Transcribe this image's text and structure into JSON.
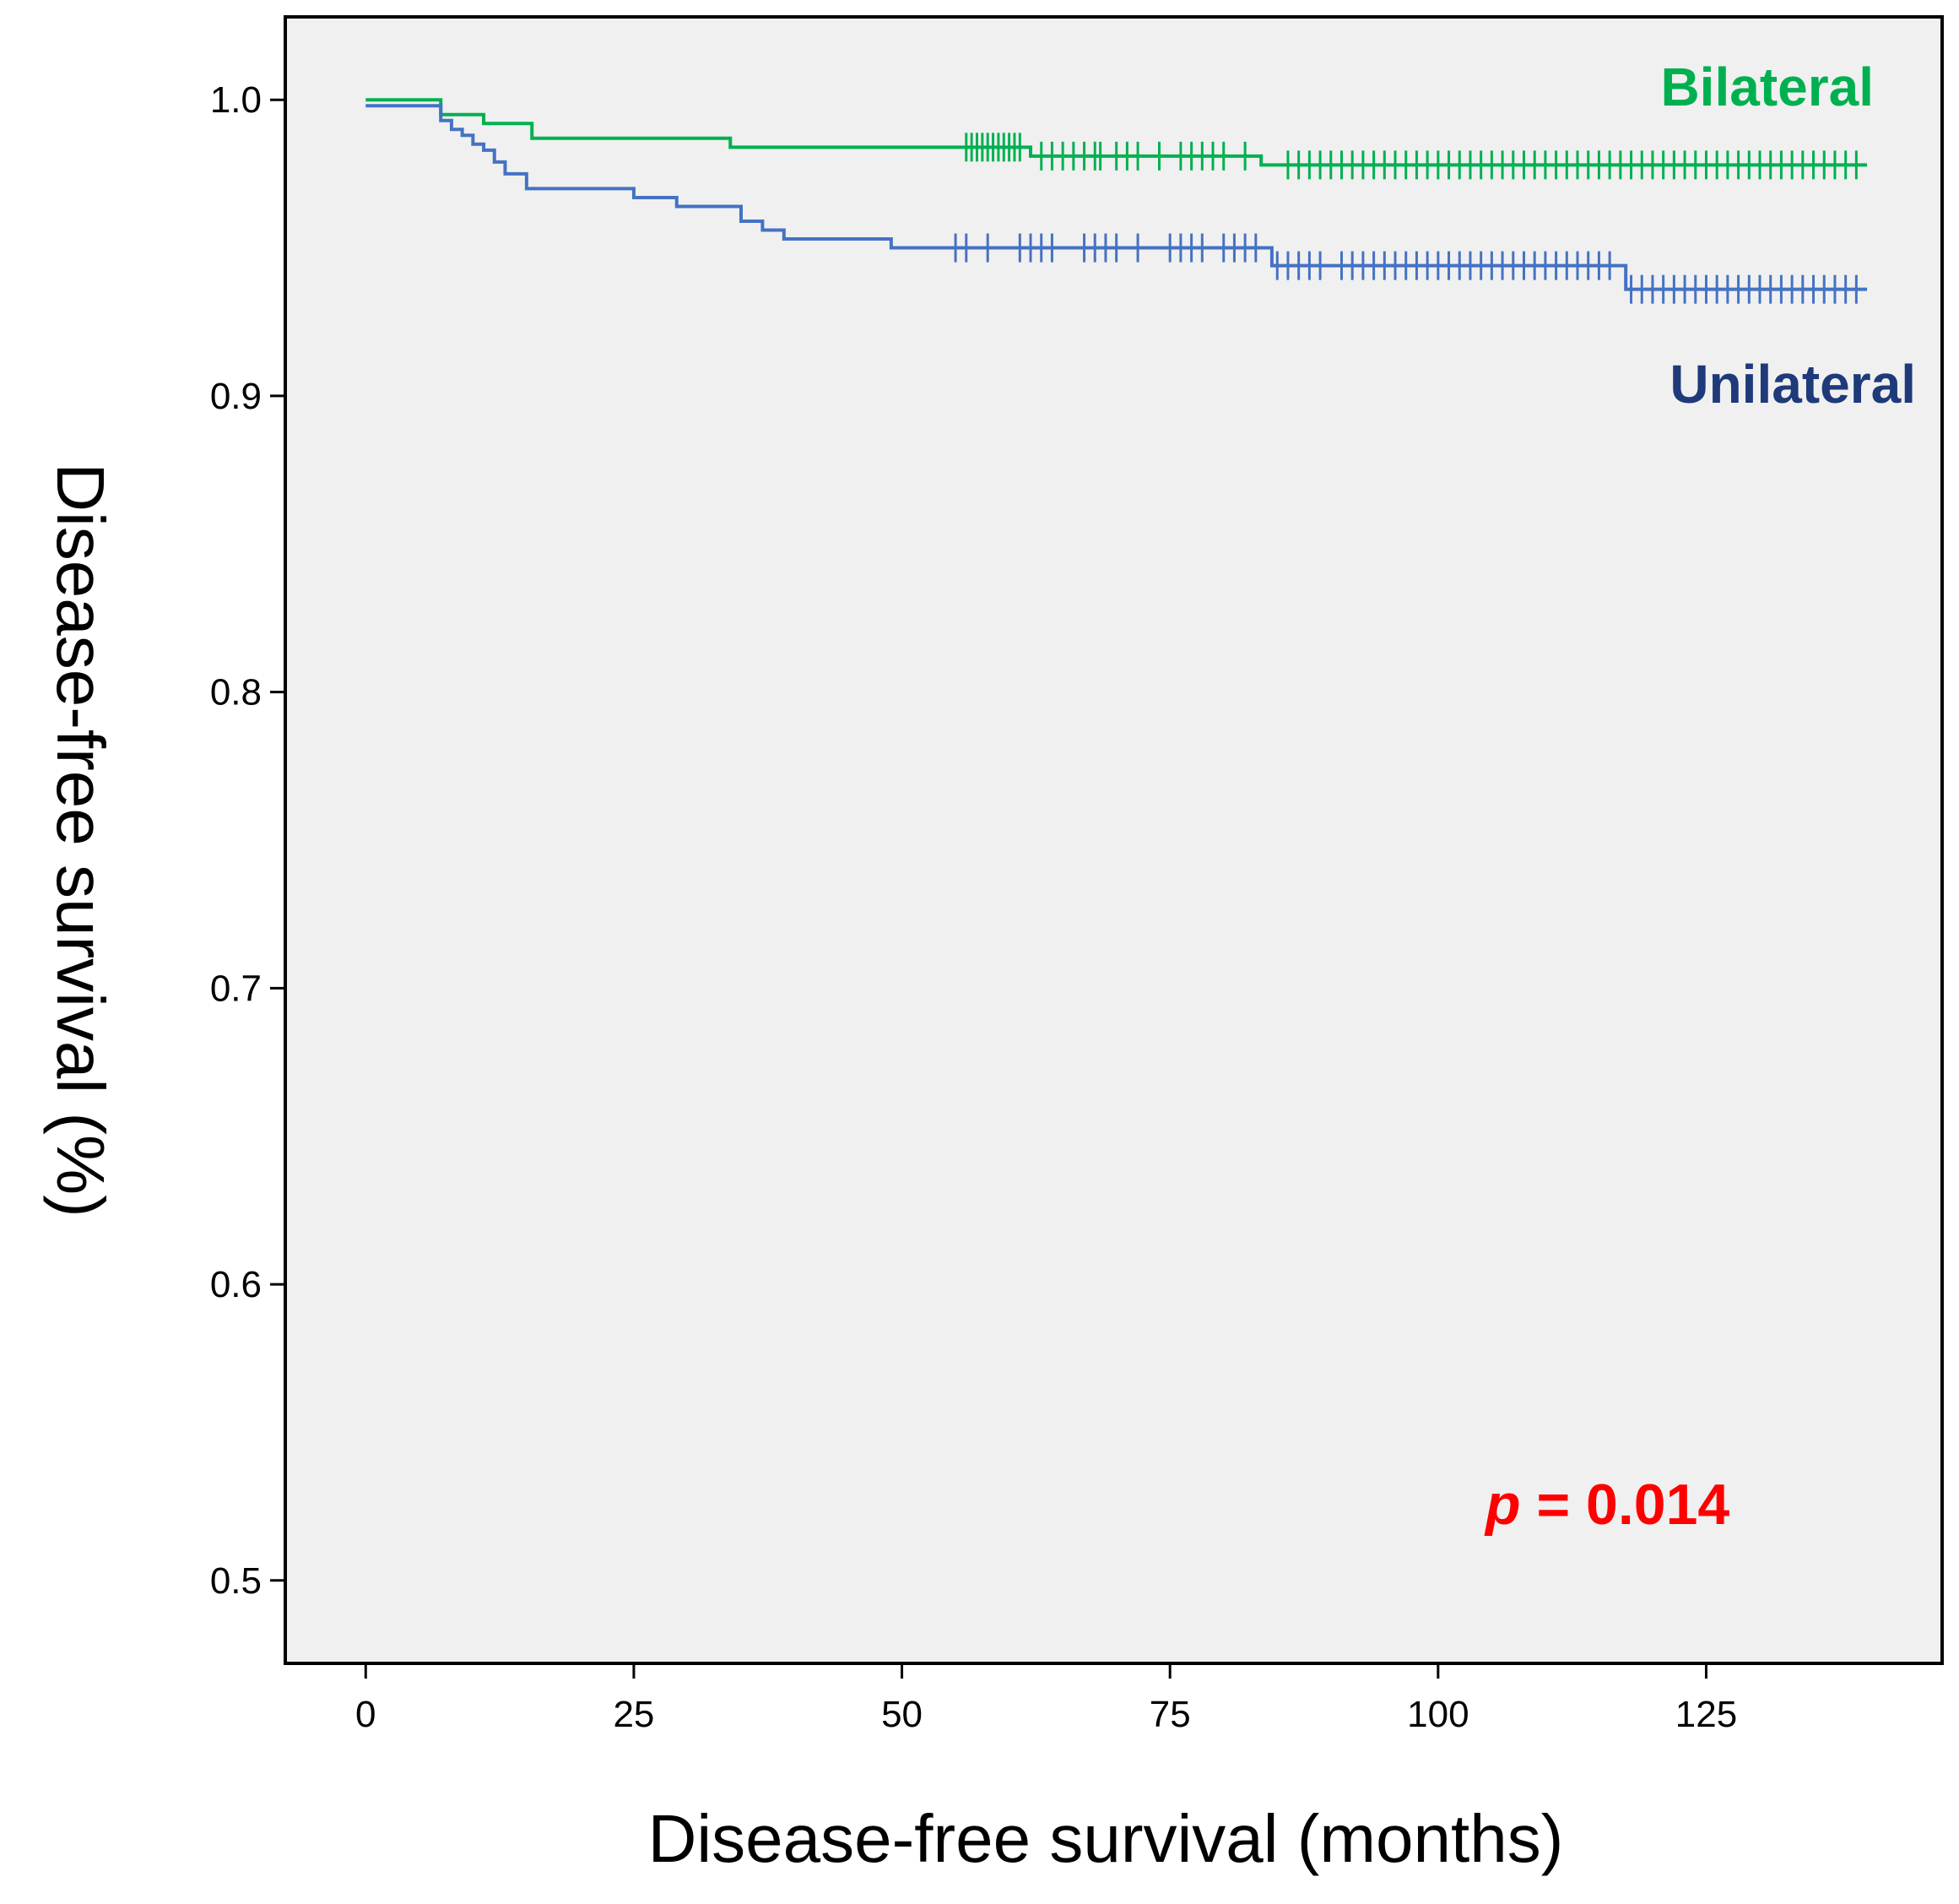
{
  "chart_data": {
    "type": "line",
    "subtype": "kaplan-meier",
    "xlabel": "Disease-free survival (months)",
    "ylabel": "Disease-free survival (%)",
    "xlim": [
      -7.5,
      147
    ],
    "ylim": [
      0.472,
      1.028
    ],
    "x_ticks": [
      0,
      25,
      50,
      75,
      100,
      125
    ],
    "x_tick_labels": [
      "0",
      "25",
      "50",
      "75",
      "100",
      "125"
    ],
    "y_ticks": [
      0.5,
      0.6,
      0.7,
      0.8,
      0.9,
      1.0
    ],
    "y_tick_labels": [
      "0.5",
      "0.6",
      "0.7",
      "0.8",
      "0.9",
      "1.0"
    ],
    "grid": false,
    "plot_background": "#f0f0f0",
    "annotation": {
      "p_symbol": "p",
      "text": " = 0.014",
      "color": "#ff0000"
    },
    "series": [
      {
        "name": "Bilateral",
        "color": "#00b050",
        "steps": [
          [
            0,
            1.0
          ],
          [
            7,
            0.995
          ],
          [
            11,
            0.992
          ],
          [
            15.5,
            0.987
          ],
          [
            34,
            0.984
          ],
          [
            62,
            0.981
          ],
          [
            83.5,
            0.978
          ],
          [
            140,
            0.978
          ]
        ],
        "censored": [
          56,
          56.5,
          57,
          57.5,
          58,
          58.5,
          59,
          59.5,
          60,
          60.5,
          61,
          63,
          64,
          65,
          66,
          67,
          68,
          68.5,
          70,
          71,
          72,
          74,
          76,
          77,
          78,
          79,
          80,
          82,
          86,
          87,
          88,
          89,
          90,
          91,
          92,
          93,
          94,
          95,
          96,
          97,
          98,
          99,
          100,
          101,
          102,
          103,
          104,
          105,
          106,
          107,
          108,
          109,
          110,
          111,
          112,
          113,
          114,
          115,
          116,
          117,
          118,
          119,
          120,
          121,
          122,
          123,
          124,
          125,
          126,
          127,
          128,
          129,
          130,
          131,
          132,
          133,
          134,
          135,
          136,
          137,
          138,
          139
        ]
      },
      {
        "name": "Unilateral",
        "color": "#4472c4",
        "steps": [
          [
            0,
            0.998
          ],
          [
            7,
            0.993
          ],
          [
            8,
            0.99
          ],
          [
            9,
            0.988
          ],
          [
            10,
            0.985
          ],
          [
            11,
            0.983
          ],
          [
            12,
            0.979
          ],
          [
            13,
            0.975
          ],
          [
            15,
            0.97
          ],
          [
            25,
            0.967
          ],
          [
            29,
            0.964
          ],
          [
            35,
            0.959
          ],
          [
            37,
            0.956
          ],
          [
            39,
            0.953
          ],
          [
            49,
            0.95
          ],
          [
            84.5,
            0.944
          ],
          [
            117.5,
            0.936
          ],
          [
            140,
            0.936
          ]
        ],
        "censored": [
          55,
          56,
          58,
          61,
          62,
          63,
          64,
          67,
          68,
          69,
          70,
          72,
          75,
          76,
          77,
          78,
          80,
          81,
          82,
          83,
          85,
          86,
          87,
          88,
          89,
          91,
          92,
          93,
          94,
          95,
          96,
          97,
          98,
          99,
          100,
          101,
          102,
          103,
          104,
          105,
          106,
          107,
          108,
          109,
          110,
          111,
          112,
          113,
          114,
          115,
          116,
          118,
          119,
          120,
          121,
          122,
          123,
          124,
          125,
          126,
          127,
          128,
          129,
          130,
          131,
          132,
          133,
          134,
          135,
          136,
          137,
          138,
          139
        ]
      }
    ]
  },
  "series_label_colors": {
    "Bilateral": "#00b050",
    "Unilateral": "#1f3a7a"
  }
}
